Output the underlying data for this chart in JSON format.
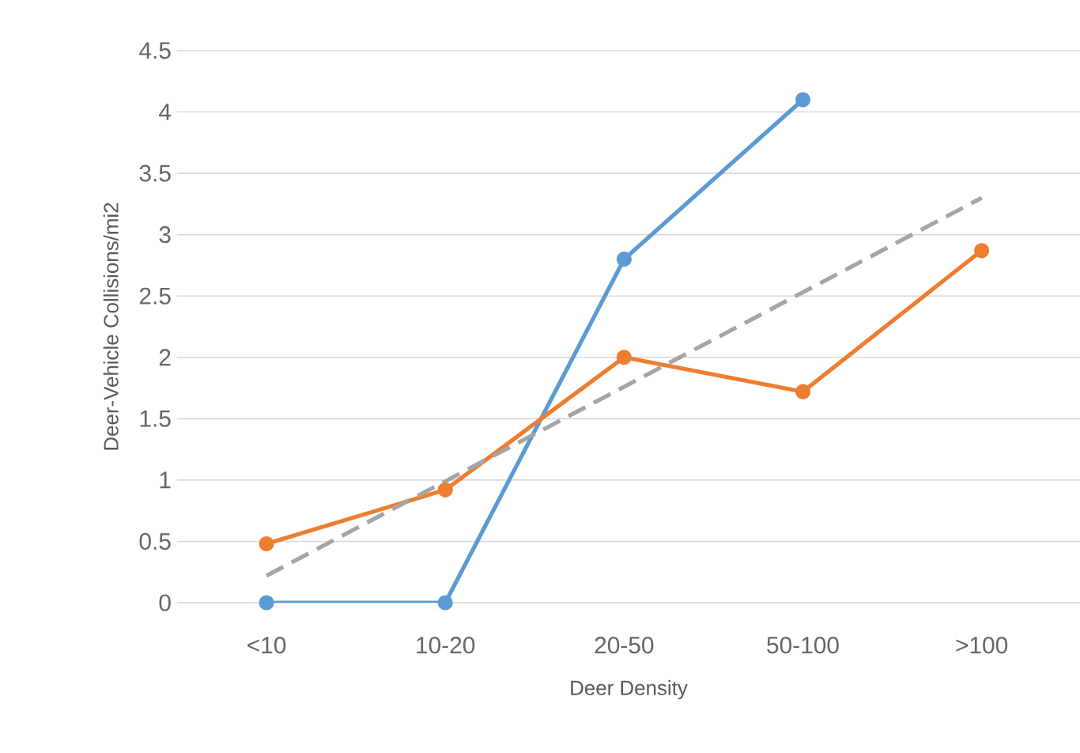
{
  "chart_data": {
    "type": "line",
    "xlabel": "Deer Density",
    "ylabel": "Deer-Vehicle Collisions/mi2",
    "categories": [
      "<10",
      "10-20",
      "20-50",
      "50-100",
      ">100"
    ],
    "series": [
      {
        "color": "#5b9bd5",
        "values": [
          0,
          0,
          2.8,
          4.1,
          null
        ],
        "marker": "circle"
      },
      {
        "color": "#ed7d31",
        "values": [
          0.48,
          0.92,
          2.0,
          1.72,
          2.87
        ],
        "marker": "circle"
      },
      {
        "color": "#a5a5a5",
        "values": [
          0.22,
          0.99,
          1.76,
          2.53,
          3.3
        ],
        "line_style": "dashed",
        "marker": "none"
      }
    ],
    "ylim": [
      0,
      4.5
    ],
    "yticks": [
      0,
      0.5,
      1,
      1.5,
      2,
      2.5,
      3,
      3.5,
      4,
      4.5
    ],
    "grid": "y"
  }
}
